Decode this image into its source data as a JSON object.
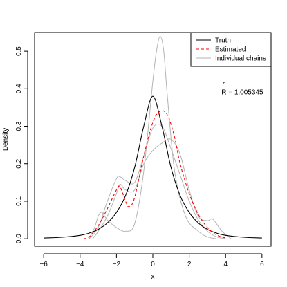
{
  "chart_data": {
    "type": "line",
    "xlabel": "x",
    "ylabel": "Density",
    "xlim": [
      -6.5,
      6.5
    ],
    "ylim": [
      -0.02,
      0.55
    ],
    "x_ticks": [
      -6,
      -4,
      -2,
      0,
      2,
      4,
      6
    ],
    "y_ticks": [
      0.0,
      0.1,
      0.2,
      0.3,
      0.4,
      0.5
    ],
    "x_tick_labels": [
      "−6",
      "−4",
      "−2",
      "0",
      "2",
      "4",
      "6"
    ],
    "y_tick_labels": [
      "0.0",
      "0.1",
      "0.2",
      "0.3",
      "0.4",
      "0.5"
    ],
    "grid": false,
    "legend": {
      "placement": "top-right",
      "entries": [
        {
          "label": "Truth",
          "color": "#000000",
          "dash": "solid"
        },
        {
          "label": "Estimated",
          "color": "#ff0000",
          "dash": "dashed"
        },
        {
          "label": "Individual chains",
          "color": "#b3b3b3",
          "dash": "solid"
        }
      ]
    },
    "annotation": {
      "hat": "^",
      "text": "R = 1.005345",
      "x": 4.0,
      "y": 0.39
    },
    "series": [
      {
        "name": "Truth",
        "color": "#000000",
        "dash": "solid",
        "x": [
          -6,
          -5,
          -4,
          -3.5,
          -3,
          -2.5,
          -2,
          -1.5,
          -1,
          -0.5,
          0,
          0.5,
          1,
          1.5,
          2,
          2.5,
          3,
          3.5,
          4,
          5,
          6
        ],
        "y": [
          0.002,
          0.004,
          0.009,
          0.015,
          0.025,
          0.042,
          0.07,
          0.115,
          0.19,
          0.3,
          0.38,
          0.3,
          0.19,
          0.115,
          0.07,
          0.042,
          0.025,
          0.015,
          0.009,
          0.004,
          0.002
        ]
      },
      {
        "name": "Estimated",
        "color": "#ff0000",
        "dash": "dashed",
        "x": [
          -3.8,
          -3.5,
          -3.0,
          -2.5,
          -2.0,
          -1.8,
          -1.5,
          -1.3,
          -1.0,
          -0.5,
          0.0,
          0.4,
          0.8,
          1.2,
          1.5,
          2.0,
          2.5,
          3.0,
          3.5,
          4.0
        ],
        "y": [
          0.0,
          0.005,
          0.035,
          0.08,
          0.13,
          0.138,
          0.1,
          0.085,
          0.11,
          0.22,
          0.31,
          0.34,
          0.33,
          0.27,
          0.2,
          0.12,
          0.065,
          0.03,
          0.01,
          0.002
        ]
      },
      {
        "name": "Individual chains 1",
        "color": "#b3b3b3",
        "dash": "solid",
        "x": [
          -3.5,
          -3.2,
          -3.0,
          -2.8,
          -2.5,
          -2.0,
          -1.5,
          -1.0,
          -0.5,
          0.0,
          0.2,
          0.4,
          0.6,
          0.8,
          1.2,
          1.8,
          2.5,
          3.0,
          3.5
        ],
        "y": [
          0.0,
          0.03,
          0.06,
          0.07,
          0.05,
          0.03,
          0.02,
          0.04,
          0.18,
          0.42,
          0.5,
          0.54,
          0.5,
          0.38,
          0.18,
          0.06,
          0.02,
          0.005,
          0.0
        ]
      },
      {
        "name": "Individual chains 2",
        "color": "#b3b3b3",
        "dash": "solid",
        "x": [
          -3.5,
          -3.0,
          -2.5,
          -2.0,
          -1.8,
          -1.5,
          -1.0,
          -0.5,
          0.0,
          0.5,
          1.0,
          1.5,
          2.0,
          2.5,
          3.0,
          3.5,
          4.0
        ],
        "y": [
          0.0,
          0.03,
          0.1,
          0.16,
          0.165,
          0.155,
          0.15,
          0.22,
          0.295,
          0.3,
          0.24,
          0.17,
          0.1,
          0.05,
          0.02,
          0.005,
          0.0
        ]
      },
      {
        "name": "Individual chains 3",
        "color": "#b3b3b3",
        "dash": "solid",
        "x": [
          -3.3,
          -3.0,
          -2.5,
          -2.0,
          -1.8,
          -1.5,
          -1.0,
          -0.5,
          0.0,
          0.5,
          1.0,
          1.5,
          2.0,
          2.5,
          3.0,
          3.3,
          3.8,
          4.3
        ],
        "y": [
          0.0,
          0.02,
          0.06,
          0.12,
          0.145,
          0.13,
          0.13,
          0.2,
          0.235,
          0.255,
          0.265,
          0.225,
          0.13,
          0.06,
          0.048,
          0.052,
          0.02,
          0.0
        ]
      }
    ]
  }
}
